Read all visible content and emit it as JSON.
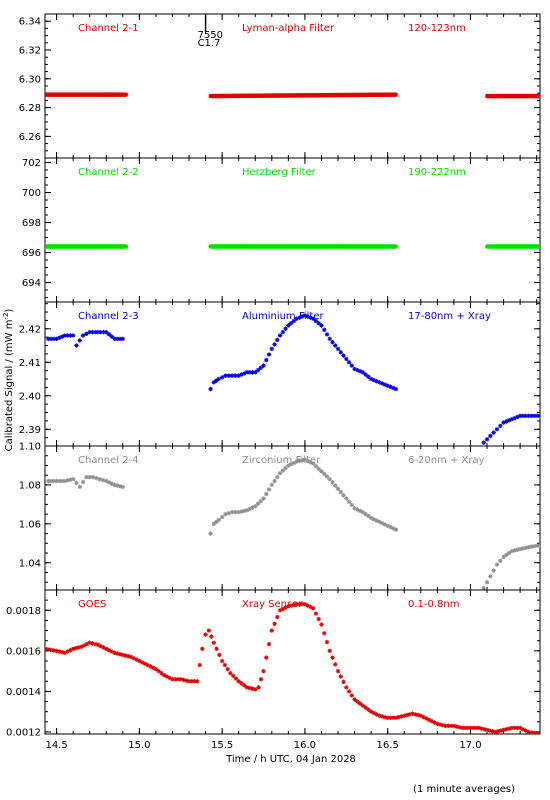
{
  "chart_data": {
    "type": "scatter",
    "xlabel": "Time / h UTC, 04 Jan 2028",
    "ylabel": "Calibrated Signal / (mW m",
    "ylabel_sup": "-2",
    "ylabel_close": ")",
    "footnote": "(1 minute averages)",
    "xlim": [
      14.43,
      17.42
    ],
    "xticks": [
      "14.5",
      "15.0",
      "15.5",
      "16.0",
      "16.5",
      "17.0"
    ],
    "flare_marker": {
      "time": 15.4,
      "label_top": "7550",
      "label_bottom": "C1.7"
    },
    "panels": [
      {
        "name": "Channel 2-1",
        "filter": "Lyman-alpha Filter",
        "band": "120-123nm",
        "color": "#e00000",
        "ylim": [
          6.245,
          6.345
        ],
        "yticks": [
          "6.26",
          "6.28",
          "6.30",
          "6.32",
          "6.34"
        ],
        "segments": [
          {
            "x": [
              14.43,
              14.92
            ],
            "y": [
              6.289,
              6.289
            ]
          },
          {
            "x": [
              15.43,
              16.55
            ],
            "y": [
              6.288,
              6.289
            ]
          },
          {
            "x": [
              17.1,
              17.42
            ],
            "y": [
              6.288,
              6.288
            ]
          }
        ]
      },
      {
        "name": "Channel 2-2",
        "filter": "Herzberg Filter",
        "band": "190-222nm",
        "color": "#00e000",
        "ylim": [
          692.7,
          702.3
        ],
        "yticks": [
          "694",
          "696",
          "698",
          "700",
          "702"
        ],
        "segments": [
          {
            "x": [
              14.43,
              14.92
            ],
            "y": [
              696.4,
              696.4
            ]
          },
          {
            "x": [
              15.43,
              16.55
            ],
            "y": [
              696.4,
              696.4
            ]
          },
          {
            "x": [
              17.1,
              17.42
            ],
            "y": [
              696.4,
              696.4
            ]
          }
        ]
      },
      {
        "name": "Channel 2-3",
        "filter": "Aluminium Filter",
        "band": "17-80nm + Xray",
        "color": "#0000e0",
        "ylim": [
          2.385,
          2.428
        ],
        "yticks": [
          "2.39",
          "2.40",
          "2.41",
          "2.42"
        ],
        "points": [
          [
            14.45,
            2.417
          ],
          [
            14.5,
            2.417
          ],
          [
            14.55,
            2.418
          ],
          [
            14.6,
            2.418
          ],
          [
            14.62,
            2.415
          ],
          [
            14.66,
            2.418
          ],
          [
            14.7,
            2.419
          ],
          [
            14.75,
            2.419
          ],
          [
            14.8,
            2.419
          ],
          [
            14.85,
            2.417
          ],
          [
            14.9,
            2.417
          ],
          [
            15.43,
            2.402
          ],
          [
            15.45,
            2.404
          ],
          [
            15.48,
            2.405
          ],
          [
            15.52,
            2.406
          ],
          [
            15.56,
            2.406
          ],
          [
            15.6,
            2.406
          ],
          [
            15.65,
            2.407
          ],
          [
            15.7,
            2.407
          ],
          [
            15.75,
            2.409
          ],
          [
            15.8,
            2.414
          ],
          [
            15.85,
            2.418
          ],
          [
            15.9,
            2.421
          ],
          [
            15.95,
            2.423
          ],
          [
            16.0,
            2.424
          ],
          [
            16.05,
            2.423
          ],
          [
            16.1,
            2.421
          ],
          [
            16.15,
            2.417
          ],
          [
            16.2,
            2.414
          ],
          [
            16.25,
            2.411
          ],
          [
            16.3,
            2.408
          ],
          [
            16.35,
            2.407
          ],
          [
            16.4,
            2.405
          ],
          [
            16.45,
            2.404
          ],
          [
            16.5,
            2.403
          ],
          [
            16.55,
            2.402
          ],
          [
            17.08,
            2.386
          ],
          [
            17.12,
            2.388
          ],
          [
            17.16,
            2.39
          ],
          [
            17.2,
            2.392
          ],
          [
            17.25,
            2.393
          ],
          [
            17.3,
            2.394
          ],
          [
            17.35,
            2.394
          ],
          [
            17.42,
            2.394
          ]
        ]
      },
      {
        "name": "Channel 2-4",
        "filter": "Zirconium Filter",
        "band": "6-20nm + Xray",
        "color": "#909090",
        "ylim": [
          1.026,
          1.1
        ],
        "yticks": [
          "1.04",
          "1.06",
          "1.08",
          "1.10"
        ],
        "points": [
          [
            14.45,
            1.082
          ],
          [
            14.5,
            1.082
          ],
          [
            14.55,
            1.082
          ],
          [
            14.6,
            1.083
          ],
          [
            14.64,
            1.079
          ],
          [
            14.68,
            1.084
          ],
          [
            14.72,
            1.084
          ],
          [
            14.76,
            1.083
          ],
          [
            14.8,
            1.082
          ],
          [
            14.85,
            1.08
          ],
          [
            14.9,
            1.079
          ],
          [
            15.43,
            1.055
          ],
          [
            15.45,
            1.06
          ],
          [
            15.48,
            1.062
          ],
          [
            15.52,
            1.065
          ],
          [
            15.56,
            1.066
          ],
          [
            15.6,
            1.066
          ],
          [
            15.65,
            1.067
          ],
          [
            15.7,
            1.069
          ],
          [
            15.75,
            1.073
          ],
          [
            15.8,
            1.08
          ],
          [
            15.85,
            1.086
          ],
          [
            15.9,
            1.09
          ],
          [
            15.95,
            1.092
          ],
          [
            16.0,
            1.093
          ],
          [
            16.05,
            1.091
          ],
          [
            16.1,
            1.087
          ],
          [
            16.15,
            1.083
          ],
          [
            16.2,
            1.078
          ],
          [
            16.25,
            1.073
          ],
          [
            16.3,
            1.068
          ],
          [
            16.35,
            1.066
          ],
          [
            16.4,
            1.063
          ],
          [
            16.45,
            1.061
          ],
          [
            16.5,
            1.059
          ],
          [
            16.55,
            1.057
          ],
          [
            17.08,
            1.027
          ],
          [
            17.12,
            1.033
          ],
          [
            17.16,
            1.039
          ],
          [
            17.2,
            1.043
          ],
          [
            17.25,
            1.046
          ],
          [
            17.3,
            1.047
          ],
          [
            17.35,
            1.048
          ],
          [
            17.42,
            1.049
          ]
        ]
      },
      {
        "name": "GOES",
        "filter": "Xray Sensor",
        "band": "0.1-0.8nm",
        "color": "#e00000",
        "ylim": [
          0.00119,
          0.0019
        ],
        "yticks": [
          "0.0012",
          "0.0014",
          "0.0016",
          "0.0018"
        ],
        "points": [
          [
            14.43,
            0.00161
          ],
          [
            14.5,
            0.0016
          ],
          [
            14.55,
            0.00159
          ],
          [
            14.6,
            0.00161
          ],
          [
            14.65,
            0.00162
          ],
          [
            14.7,
            0.00164
          ],
          [
            14.75,
            0.00163
          ],
          [
            14.8,
            0.00161
          ],
          [
            14.85,
            0.00159
          ],
          [
            14.9,
            0.00158
          ],
          [
            14.95,
            0.00157
          ],
          [
            15.0,
            0.00155
          ],
          [
            15.05,
            0.00153
          ],
          [
            15.1,
            0.00151
          ],
          [
            15.15,
            0.00148
          ],
          [
            15.2,
            0.00146
          ],
          [
            15.25,
            0.00146
          ],
          [
            15.3,
            0.00145
          ],
          [
            15.35,
            0.00145
          ],
          [
            15.38,
            0.00161
          ],
          [
            15.4,
            0.00168
          ],
          [
            15.42,
            0.0017
          ],
          [
            15.45,
            0.00164
          ],
          [
            15.5,
            0.00155
          ],
          [
            15.55,
            0.00149
          ],
          [
            15.6,
            0.00145
          ],
          [
            15.65,
            0.00142
          ],
          [
            15.7,
            0.00141
          ],
          [
            15.72,
            0.00142
          ],
          [
            15.75,
            0.0015
          ],
          [
            15.8,
            0.0017
          ],
          [
            15.85,
            0.0018
          ],
          [
            15.9,
            0.00182
          ],
          [
            15.95,
            0.00183
          ],
          [
            16.0,
            0.00183
          ],
          [
            16.05,
            0.00181
          ],
          [
            16.1,
            0.00173
          ],
          [
            16.15,
            0.0016
          ],
          [
            16.2,
            0.0015
          ],
          [
            16.25,
            0.00142
          ],
          [
            16.3,
            0.00136
          ],
          [
            16.35,
            0.00133
          ],
          [
            16.4,
            0.0013
          ],
          [
            16.45,
            0.00128
          ],
          [
            16.5,
            0.00127
          ],
          [
            16.55,
            0.00127
          ],
          [
            16.6,
            0.00128
          ],
          [
            16.65,
            0.00129
          ],
          [
            16.7,
            0.00128
          ],
          [
            16.75,
            0.00126
          ],
          [
            16.8,
            0.00124
          ],
          [
            16.85,
            0.00123
          ],
          [
            16.9,
            0.00123
          ],
          [
            16.95,
            0.00122
          ],
          [
            17.0,
            0.00122
          ],
          [
            17.05,
            0.00122
          ],
          [
            17.1,
            0.00121
          ],
          [
            17.15,
            0.0012
          ],
          [
            17.2,
            0.00121
          ],
          [
            17.25,
            0.00122
          ],
          [
            17.3,
            0.00122
          ],
          [
            17.35,
            0.0012
          ],
          [
            17.42,
            0.00119
          ]
        ]
      }
    ]
  }
}
